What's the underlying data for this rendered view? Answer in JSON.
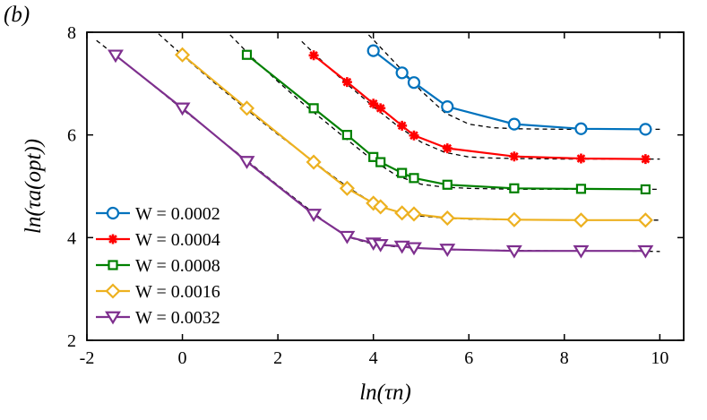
{
  "panel_label": "(b)",
  "chart_data": {
    "type": "line",
    "title": "",
    "xlabel": "ln(τn)",
    "ylabel": "ln(τa(opt))",
    "xlim": [
      -2,
      10.5
    ],
    "ylim": [
      2,
      8
    ],
    "xticks": [
      -2,
      0,
      2,
      4,
      6,
      8,
      10
    ],
    "yticks": [
      2,
      4,
      6,
      8
    ],
    "xtick_labels": [
      "-2",
      "0",
      "2",
      "4",
      "6",
      "8",
      "10"
    ],
    "ytick_labels": [
      "2",
      "4",
      "6",
      "8"
    ],
    "grid": false,
    "legend_position": "left",
    "series": [
      {
        "name": "W = 0.0002",
        "color": "#0072bd",
        "marker": "circle",
        "x": [
          4.0,
          4.6,
          4.85,
          5.55,
          6.95,
          8.35,
          9.7
        ],
        "y": [
          7.64,
          7.21,
          7.02,
          6.55,
          6.21,
          6.12,
          6.11
        ],
        "fit_x": [
          3.9,
          4.5,
          5.0,
          5.5,
          6.0,
          6.5,
          7.0,
          8.0,
          9.0,
          10.0
        ],
        "fit_y": [
          7.95,
          7.36,
          6.86,
          6.43,
          6.21,
          6.14,
          6.12,
          6.11,
          6.11,
          6.11
        ]
      },
      {
        "name": "W = 0.0004",
        "color": "#ff0000",
        "marker": "asterisk",
        "x": [
          2.75,
          3.45,
          4.0,
          4.15,
          4.6,
          4.85,
          5.55,
          6.95,
          8.35,
          9.7
        ],
        "y": [
          7.55,
          7.03,
          6.61,
          6.52,
          6.18,
          5.99,
          5.74,
          5.58,
          5.54,
          5.53
        ],
        "fit_x": [
          2.5,
          3.0,
          3.5,
          4.0,
          4.5,
          5.0,
          5.5,
          6.0,
          6.5,
          7.0,
          8.0,
          9.0,
          10.0
        ],
        "fit_y": [
          7.82,
          7.37,
          6.95,
          6.55,
          6.18,
          5.86,
          5.66,
          5.57,
          5.55,
          5.54,
          5.53,
          5.53,
          5.53
        ]
      },
      {
        "name": "W = 0.0008",
        "color": "#008000",
        "marker": "square",
        "x": [
          1.35,
          2.75,
          3.45,
          4.0,
          4.15,
          4.6,
          4.85,
          5.55,
          6.95,
          8.35,
          9.7
        ],
        "y": [
          7.56,
          6.52,
          6.0,
          5.57,
          5.47,
          5.26,
          5.16,
          5.03,
          4.96,
          4.95,
          4.94
        ],
        "fit_x": [
          1.0,
          1.5,
          2.0,
          2.5,
          3.0,
          3.5,
          4.0,
          4.5,
          5.0,
          5.5,
          6.0,
          6.5,
          7.0,
          8.0,
          9.0,
          10.0
        ],
        "fit_y": [
          7.95,
          7.47,
          7.04,
          6.63,
          6.25,
          5.87,
          5.5,
          5.2,
          5.04,
          4.98,
          4.96,
          4.95,
          4.94,
          4.94,
          4.94,
          4.94
        ]
      },
      {
        "name": "W = 0.0016",
        "color": "#edb120",
        "marker": "diamond",
        "x": [
          0.0,
          1.35,
          2.75,
          3.45,
          4.0,
          4.15,
          4.6,
          4.85,
          5.55,
          6.95,
          8.35,
          9.7
        ],
        "y": [
          7.56,
          6.52,
          5.47,
          4.96,
          4.67,
          4.6,
          4.48,
          4.46,
          4.38,
          4.35,
          4.34,
          4.34
        ],
        "fit_x": [
          -0.5,
          0.0,
          0.5,
          1.0,
          1.5,
          2.0,
          2.5,
          3.0,
          3.5,
          4.0,
          4.5,
          5.0,
          5.5,
          6.0,
          7.0,
          8.0,
          9.0,
          10.0
        ],
        "fit_y": [
          7.97,
          7.55,
          7.15,
          6.76,
          6.38,
          6.01,
          5.66,
          5.3,
          4.96,
          4.67,
          4.5,
          4.42,
          4.38,
          4.36,
          4.35,
          4.34,
          4.34,
          4.34
        ]
      },
      {
        "name": "W = 0.0032",
        "color": "#7e2f8e",
        "marker": "triangle-down",
        "x": [
          -1.4,
          0.0,
          1.35,
          2.75,
          3.45,
          4.0,
          4.15,
          4.6,
          4.85,
          5.55,
          6.95,
          8.35,
          9.7
        ],
        "y": [
          7.55,
          6.52,
          5.48,
          4.45,
          4.02,
          3.89,
          3.86,
          3.83,
          3.8,
          3.77,
          3.74,
          3.74,
          3.74
        ],
        "fit_x": [
          -1.8,
          -1.4,
          -1.0,
          -0.5,
          0.0,
          0.5,
          1.0,
          1.5,
          2.0,
          2.5,
          3.0,
          3.5,
          4.0,
          4.5,
          5.0,
          6.0,
          7.0,
          8.0,
          9.0,
          10.0
        ],
        "fit_y": [
          7.84,
          7.55,
          7.25,
          6.88,
          6.5,
          6.13,
          5.76,
          5.39,
          5.02,
          4.66,
          4.3,
          4.0,
          3.87,
          3.82,
          3.79,
          3.76,
          3.75,
          3.74,
          3.74,
          3.73
        ]
      }
    ]
  }
}
